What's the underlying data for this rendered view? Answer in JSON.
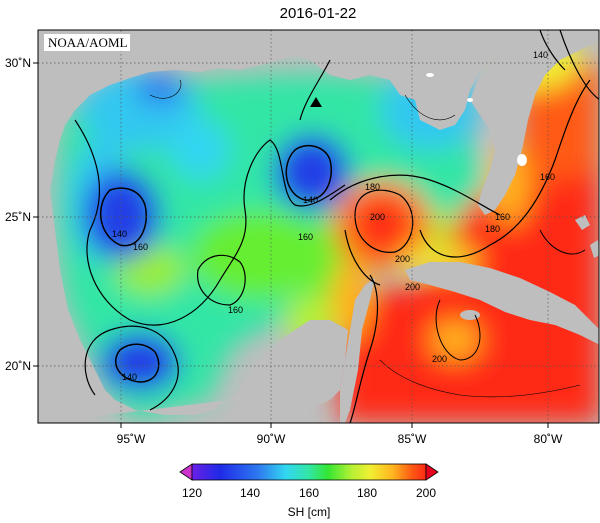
{
  "title": "2016-01-22",
  "agency_label": "NOAA/AOML",
  "colorbar": {
    "label": "SH [cm]",
    "ticks": [
      "120",
      "140",
      "160",
      "180",
      "200"
    ],
    "min": 120,
    "max": 200,
    "extend": "both",
    "colors": [
      "#cc33cc",
      "#7a1ff0",
      "#1f2be6",
      "#2d77f0",
      "#33d6f0",
      "#33e6a6",
      "#33e633",
      "#b3f033",
      "#f0f033",
      "#ffb31f",
      "#ff5a14",
      "#ff2a14",
      "#e6001f"
    ]
  },
  "axes": {
    "lon_ticks": [
      "95˚W",
      "90˚W",
      "85˚W",
      "80˚W"
    ],
    "lat_ticks": [
      "30˚N",
      "25˚N",
      "20˚N"
    ],
    "lon_range": [
      -98.2,
      -78.2
    ],
    "lat_range": [
      18.2,
      31.0
    ],
    "grid": true
  },
  "contour_labels": [
    "140",
    "140",
    "140",
    "140",
    "160",
    "160",
    "160",
    "160",
    "160",
    "180",
    "180",
    "200",
    "200",
    "200",
    "200"
  ],
  "marker": {
    "symbol": "triangle",
    "lon": -88.3,
    "lat": 28.8,
    "color": "#000000"
  },
  "land_color": "#bebebe"
}
